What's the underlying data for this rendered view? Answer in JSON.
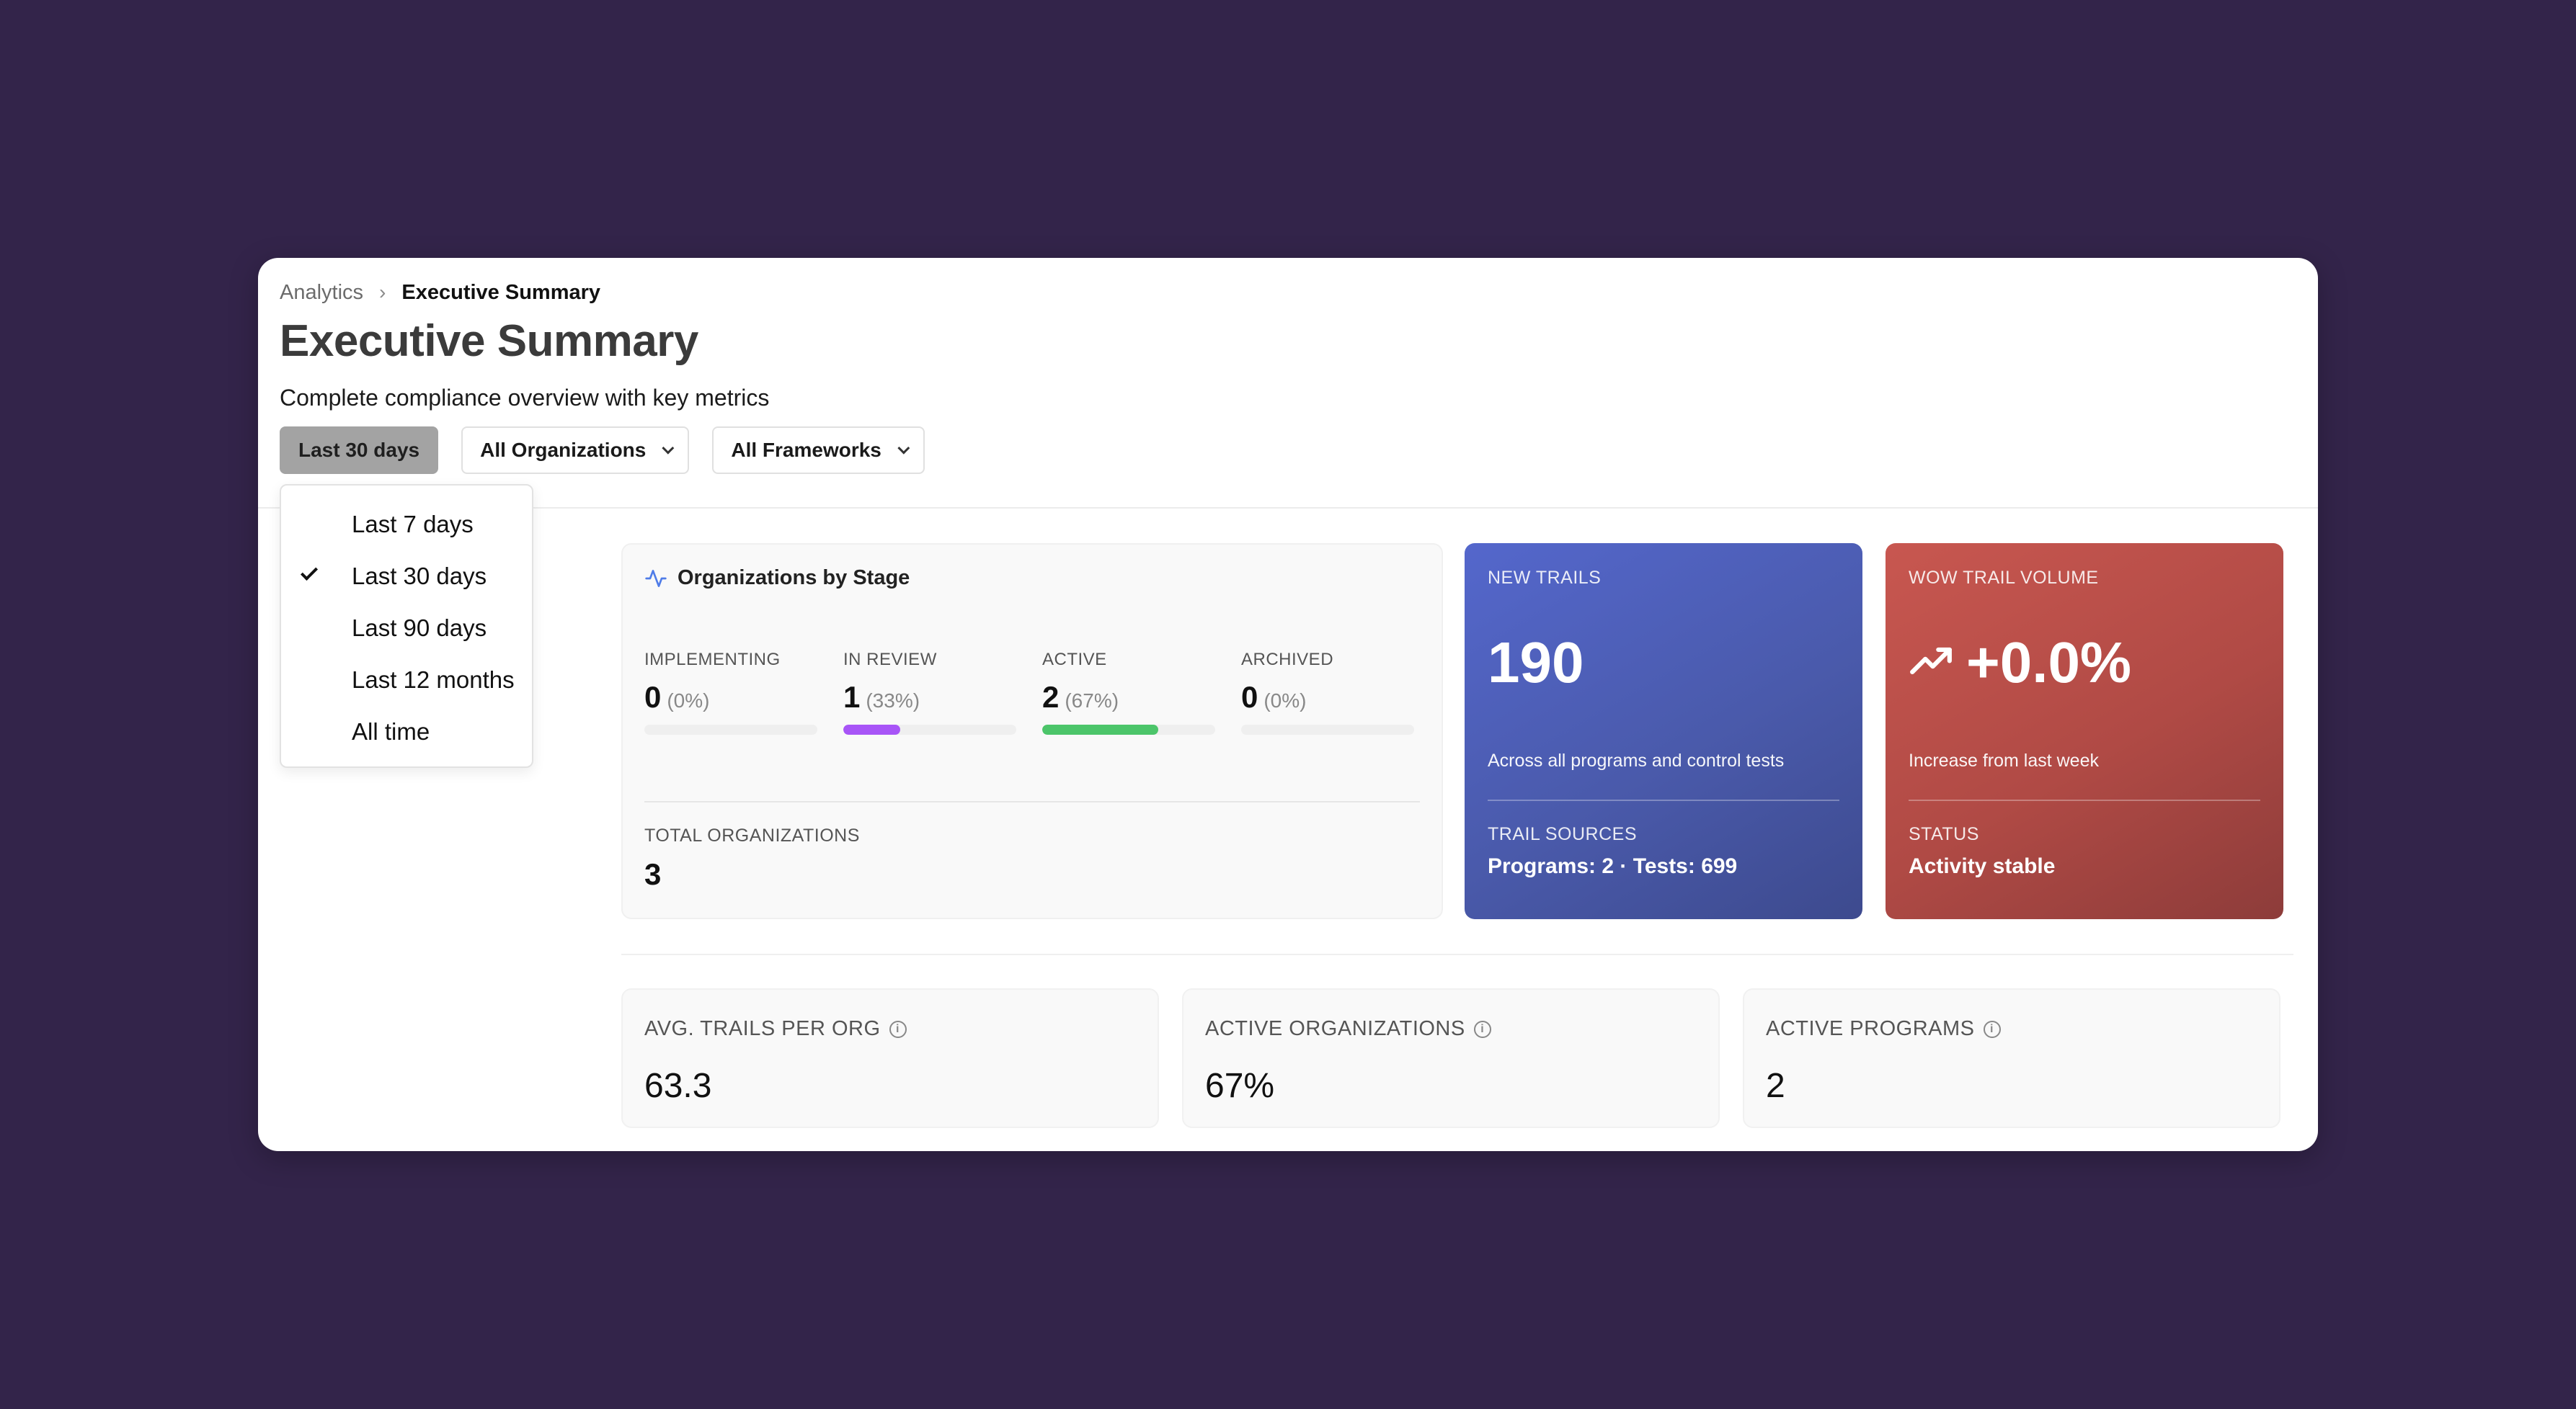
{
  "breadcrumb": {
    "parent": "Analytics",
    "current": "Executive Summary"
  },
  "page": {
    "title": "Executive Summary",
    "subtitle": "Complete compliance overview with key metrics"
  },
  "filters": {
    "period": "Last 30 days",
    "organizations": "All Organizations",
    "frameworks": "All Frameworks"
  },
  "period_menu": {
    "selected": "Last 30 days",
    "options": [
      "Last 7 days",
      "Last 30 days",
      "Last 90 days",
      "Last 12 months",
      "All time"
    ]
  },
  "stages": {
    "title": "Organizations by Stage",
    "items": [
      {
        "label": "IMPLEMENTING",
        "count": "0",
        "pct": "(0%)",
        "fraction": 0,
        "color": "#d9d9d9"
      },
      {
        "label": "IN REVIEW",
        "count": "1",
        "pct": "(33%)",
        "fraction": 0.33,
        "color": "#a855f7"
      },
      {
        "label": "ACTIVE",
        "count": "2",
        "pct": "(67%)",
        "fraction": 0.67,
        "color": "#4cc56a"
      },
      {
        "label": "ARCHIVED",
        "count": "0",
        "pct": "(0%)",
        "fraction": 0,
        "color": "#d9d9d9"
      }
    ],
    "total_label": "TOTAL ORGANIZATIONS",
    "total_value": "3"
  },
  "new_trails": {
    "label": "NEW TRAILS",
    "value": "190",
    "description": "Across all programs and control tests",
    "sub_label": "TRAIL SOURCES",
    "sub_value": "Programs: 2 · Tests: 699"
  },
  "wow_volume": {
    "label": "WOW TRAIL VOLUME",
    "value": "+0.0%",
    "description": "Increase from last week",
    "sub_label": "STATUS",
    "sub_value": "Activity stable"
  },
  "metrics": [
    {
      "label": "AVG. TRAILS PER ORG",
      "value": "63.3"
    },
    {
      "label": "ACTIVE ORGANIZATIONS",
      "value": "67%"
    },
    {
      "label": "ACTIVE PROGRAMS",
      "value": "2"
    }
  ],
  "icons": {
    "breadcrumb_separator": "chevron-right-icon",
    "stage_header": "activity-icon",
    "trend": "trending-up-icon",
    "info": "info-icon",
    "selected": "check-icon"
  }
}
